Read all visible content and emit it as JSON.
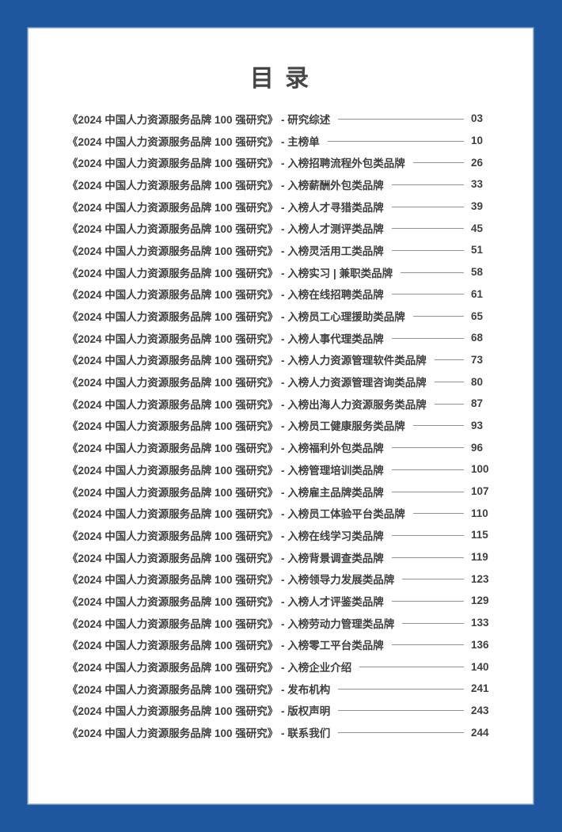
{
  "page": {
    "title": "目 录"
  },
  "colors": {
    "border_blue": "#1e579f",
    "sheet_background": "#ffffff",
    "text": "#3f3f3f",
    "leader_line": "#939393"
  },
  "toc": {
    "book_title_prefix": "《2024 中国人力资源服务品牌 100 强研究》",
    "entries": [
      {
        "label": "《2024 中国人力资源服务品牌 100 强研究》 - 研究综述",
        "page": "03"
      },
      {
        "label": "《2024 中国人力资源服务品牌 100 强研究》 - 主榜单",
        "page": "10"
      },
      {
        "label": "《2024 中国人力资源服务品牌 100 强研究》 - 入榜招聘流程外包类品牌",
        "page": "26"
      },
      {
        "label": "《2024 中国人力资源服务品牌 100 强研究》 - 入榜薪酬外包类品牌",
        "page": "33"
      },
      {
        "label": "《2024 中国人力资源服务品牌 100 强研究》 - 入榜人才寻猎类品牌",
        "page": "39"
      },
      {
        "label": "《2024 中国人力资源服务品牌 100 强研究》 - 入榜人才测评类品牌",
        "page": "45"
      },
      {
        "label": "《2024 中国人力资源服务品牌 100 强研究》 - 入榜灵活用工类品牌",
        "page": "51"
      },
      {
        "label": "《2024 中国人力资源服务品牌 100 强研究》 - 入榜实习 | 兼职类品牌",
        "page": "58"
      },
      {
        "label": "《2024 中国人力资源服务品牌 100 强研究》 - 入榜在线招聘类品牌",
        "page": "61"
      },
      {
        "label": "《2024 中国人力资源服务品牌 100 强研究》 - 入榜员工心理援助类品牌",
        "page": "65"
      },
      {
        "label": "《2024 中国人力资源服务品牌 100 强研究》 - 入榜人事代理类品牌",
        "page": "68"
      },
      {
        "label": "《2024 中国人力资源服务品牌 100 强研究》 - 入榜人力资源管理软件类品牌",
        "page": "73"
      },
      {
        "label": "《2024 中国人力资源服务品牌 100 强研究》 - 入榜人力资源管理咨询类品牌",
        "page": "80"
      },
      {
        "label": "《2024 中国人力资源服务品牌 100 强研究》 - 入榜出海人力资源服务类品牌",
        "page": "87"
      },
      {
        "label": "《2024 中国人力资源服务品牌 100 强研究》 - 入榜员工健康服务类品牌",
        "page": "93"
      },
      {
        "label": "《2024 中国人力资源服务品牌 100 强研究》 - 入榜福利外包类品牌",
        "page": "96"
      },
      {
        "label": "《2024 中国人力资源服务品牌 100 强研究》 - 入榜管理培训类品牌",
        "page": "100"
      },
      {
        "label": "《2024 中国人力资源服务品牌 100 强研究》 - 入榜雇主品牌类品牌",
        "page": "107"
      },
      {
        "label": "《2024 中国人力资源服务品牌 100 强研究》 - 入榜员工体验平台类品牌",
        "page": "110"
      },
      {
        "label": "《2024 中国人力资源服务品牌 100 强研究》 - 入榜在线学习类品牌",
        "page": "115"
      },
      {
        "label": "《2024 中国人力资源服务品牌 100 强研究》 - 入榜背景调查类品牌",
        "page": "119"
      },
      {
        "label": "《2024 中国人力资源服务品牌 100 强研究》 - 入榜领导力发展类品牌",
        "page": "123"
      },
      {
        "label": "《2024 中国人力资源服务品牌 100 强研究》 - 入榜人才评鉴类品牌",
        "page": "129"
      },
      {
        "label": "《2024 中国人力资源服务品牌 100 强研究》 - 入榜劳动力管理类品牌",
        "page": "133"
      },
      {
        "label": "《2024 中国人力资源服务品牌 100 强研究》 - 入榜零工平台类品牌",
        "page": "136"
      },
      {
        "label": "《2024 中国人力资源服务品牌 100 强研究》 - 入榜企业介绍",
        "page": "140"
      },
      {
        "label": "《2024 中国人力资源服务品牌 100 强研究》 - 发布机构",
        "page": "241"
      },
      {
        "label": "《2024 中国人力资源服务品牌 100 强研究》 - 版权声明",
        "page": "243"
      },
      {
        "label": "《2024 中国人力资源服务品牌 100 强研究》 - 联系我们",
        "page": "244"
      }
    ]
  }
}
